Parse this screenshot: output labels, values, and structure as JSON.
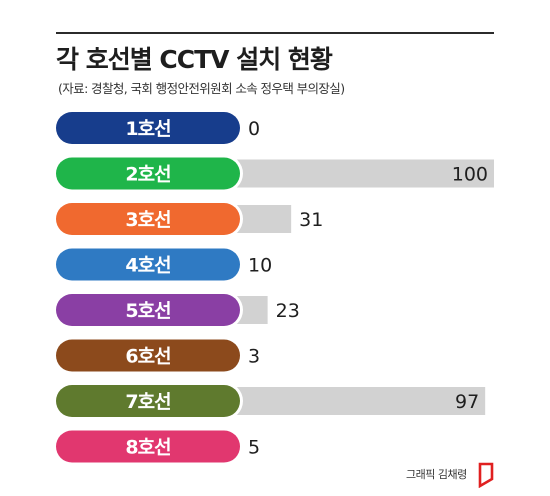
{
  "chart_data": {
    "type": "bar",
    "orientation": "horizontal",
    "title": "각 호선별 CCTV 설치 현황",
    "subtitle": "(자료: 경찰청, 국회 행정안전위원회 소속 정우택 부의장실)",
    "categories": [
      "1호선",
      "2호선",
      "3호선",
      "4호선",
      "5호선",
      "6호선",
      "7호선",
      "8호선"
    ],
    "values": [
      0,
      100,
      31,
      10,
      23,
      3,
      97,
      5
    ],
    "value_labels": [
      "0",
      "100",
      "31",
      "10",
      "23",
      "3",
      "97",
      "5"
    ],
    "xlim": [
      0,
      100
    ],
    "grid": false,
    "colors": {
      "categories": [
        "#173d8c",
        "#1fb54a",
        "#f0692f",
        "#2f7ac3",
        "#8a3fa4",
        "#8c4a1c",
        "#5f7a2e",
        "#e1376f"
      ],
      "bar": "#d2d2d2",
      "label_text": "#ffffff",
      "value_text": "#1f1f1f"
    }
  },
  "credit": "그래픽 김채령",
  "logo_icon": "flag-logo-icon",
  "logo_color": "#e02020"
}
